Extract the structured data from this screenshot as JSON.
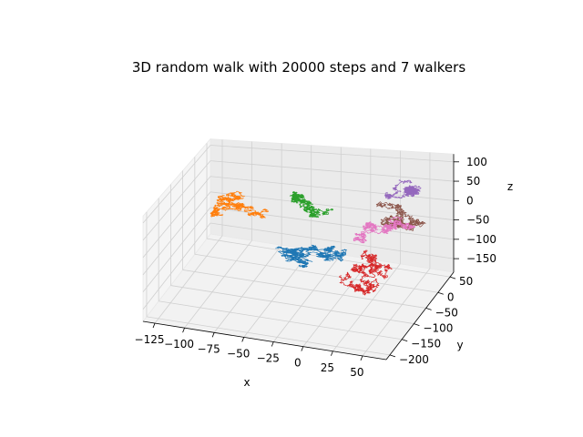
{
  "chart_data": {
    "type": "line",
    "projection": "3d",
    "title": "3D random walk with 20000 steps and 7 walkers",
    "xlabel": "x",
    "ylabel": "y",
    "zlabel": "z",
    "xlim": [
      -135,
      70
    ],
    "ylim": [
      -215,
      65
    ],
    "zlim": [
      -185,
      120
    ],
    "xticks": [
      -125,
      -100,
      -75,
      -50,
      -25,
      0,
      25,
      50
    ],
    "yticks": [
      -200,
      -150,
      -100,
      -50,
      0,
      50
    ],
    "zticks": [
      -150,
      -100,
      -50,
      0,
      50,
      100
    ],
    "xtick_labels": [
      "−125",
      "−100",
      "−75",
      "−50",
      "−25",
      "0",
      "25",
      "50"
    ],
    "ytick_labels": [
      "−200",
      "−150",
      "−100",
      "−50",
      "0",
      "50"
    ],
    "ztick_labels": [
      "−150",
      "−100",
      "−50",
      "0",
      "50",
      "100"
    ],
    "grid": true,
    "steps": 20000,
    "series": [
      {
        "color": "#1f77b4",
        "x_range": [
          -112,
          -8
        ],
        "y_range": [
          -80,
          5
        ],
        "z_range": [
          -150,
          -40
        ]
      },
      {
        "color": "#ff7f0e",
        "x_range": [
          -115,
          -35
        ],
        "y_range": [
          -40,
          45
        ],
        "z_range": [
          -70,
          20
        ]
      },
      {
        "color": "#2ca02c",
        "x_range": [
          -55,
          10
        ],
        "y_range": [
          -20,
          50
        ],
        "z_range": [
          -55,
          25
        ]
      },
      {
        "color": "#d62728",
        "x_range": [
          -5,
          60
        ],
        "y_range": [
          -110,
          -20
        ],
        "z_range": [
          -170,
          -30
        ]
      },
      {
        "color": "#9467bd",
        "x_range": [
          5,
          55
        ],
        "y_range": [
          10,
          60
        ],
        "z_range": [
          20,
          110
        ]
      },
      {
        "color": "#8c564b",
        "x_range": [
          0,
          60
        ],
        "y_range": [
          -20,
          55
        ],
        "z_range": [
          -60,
          60
        ]
      },
      {
        "color": "#e377c2",
        "x_range": [
          5,
          65
        ],
        "y_range": [
          -30,
          40
        ],
        "z_range": [
          -70,
          20
        ]
      }
    ]
  }
}
